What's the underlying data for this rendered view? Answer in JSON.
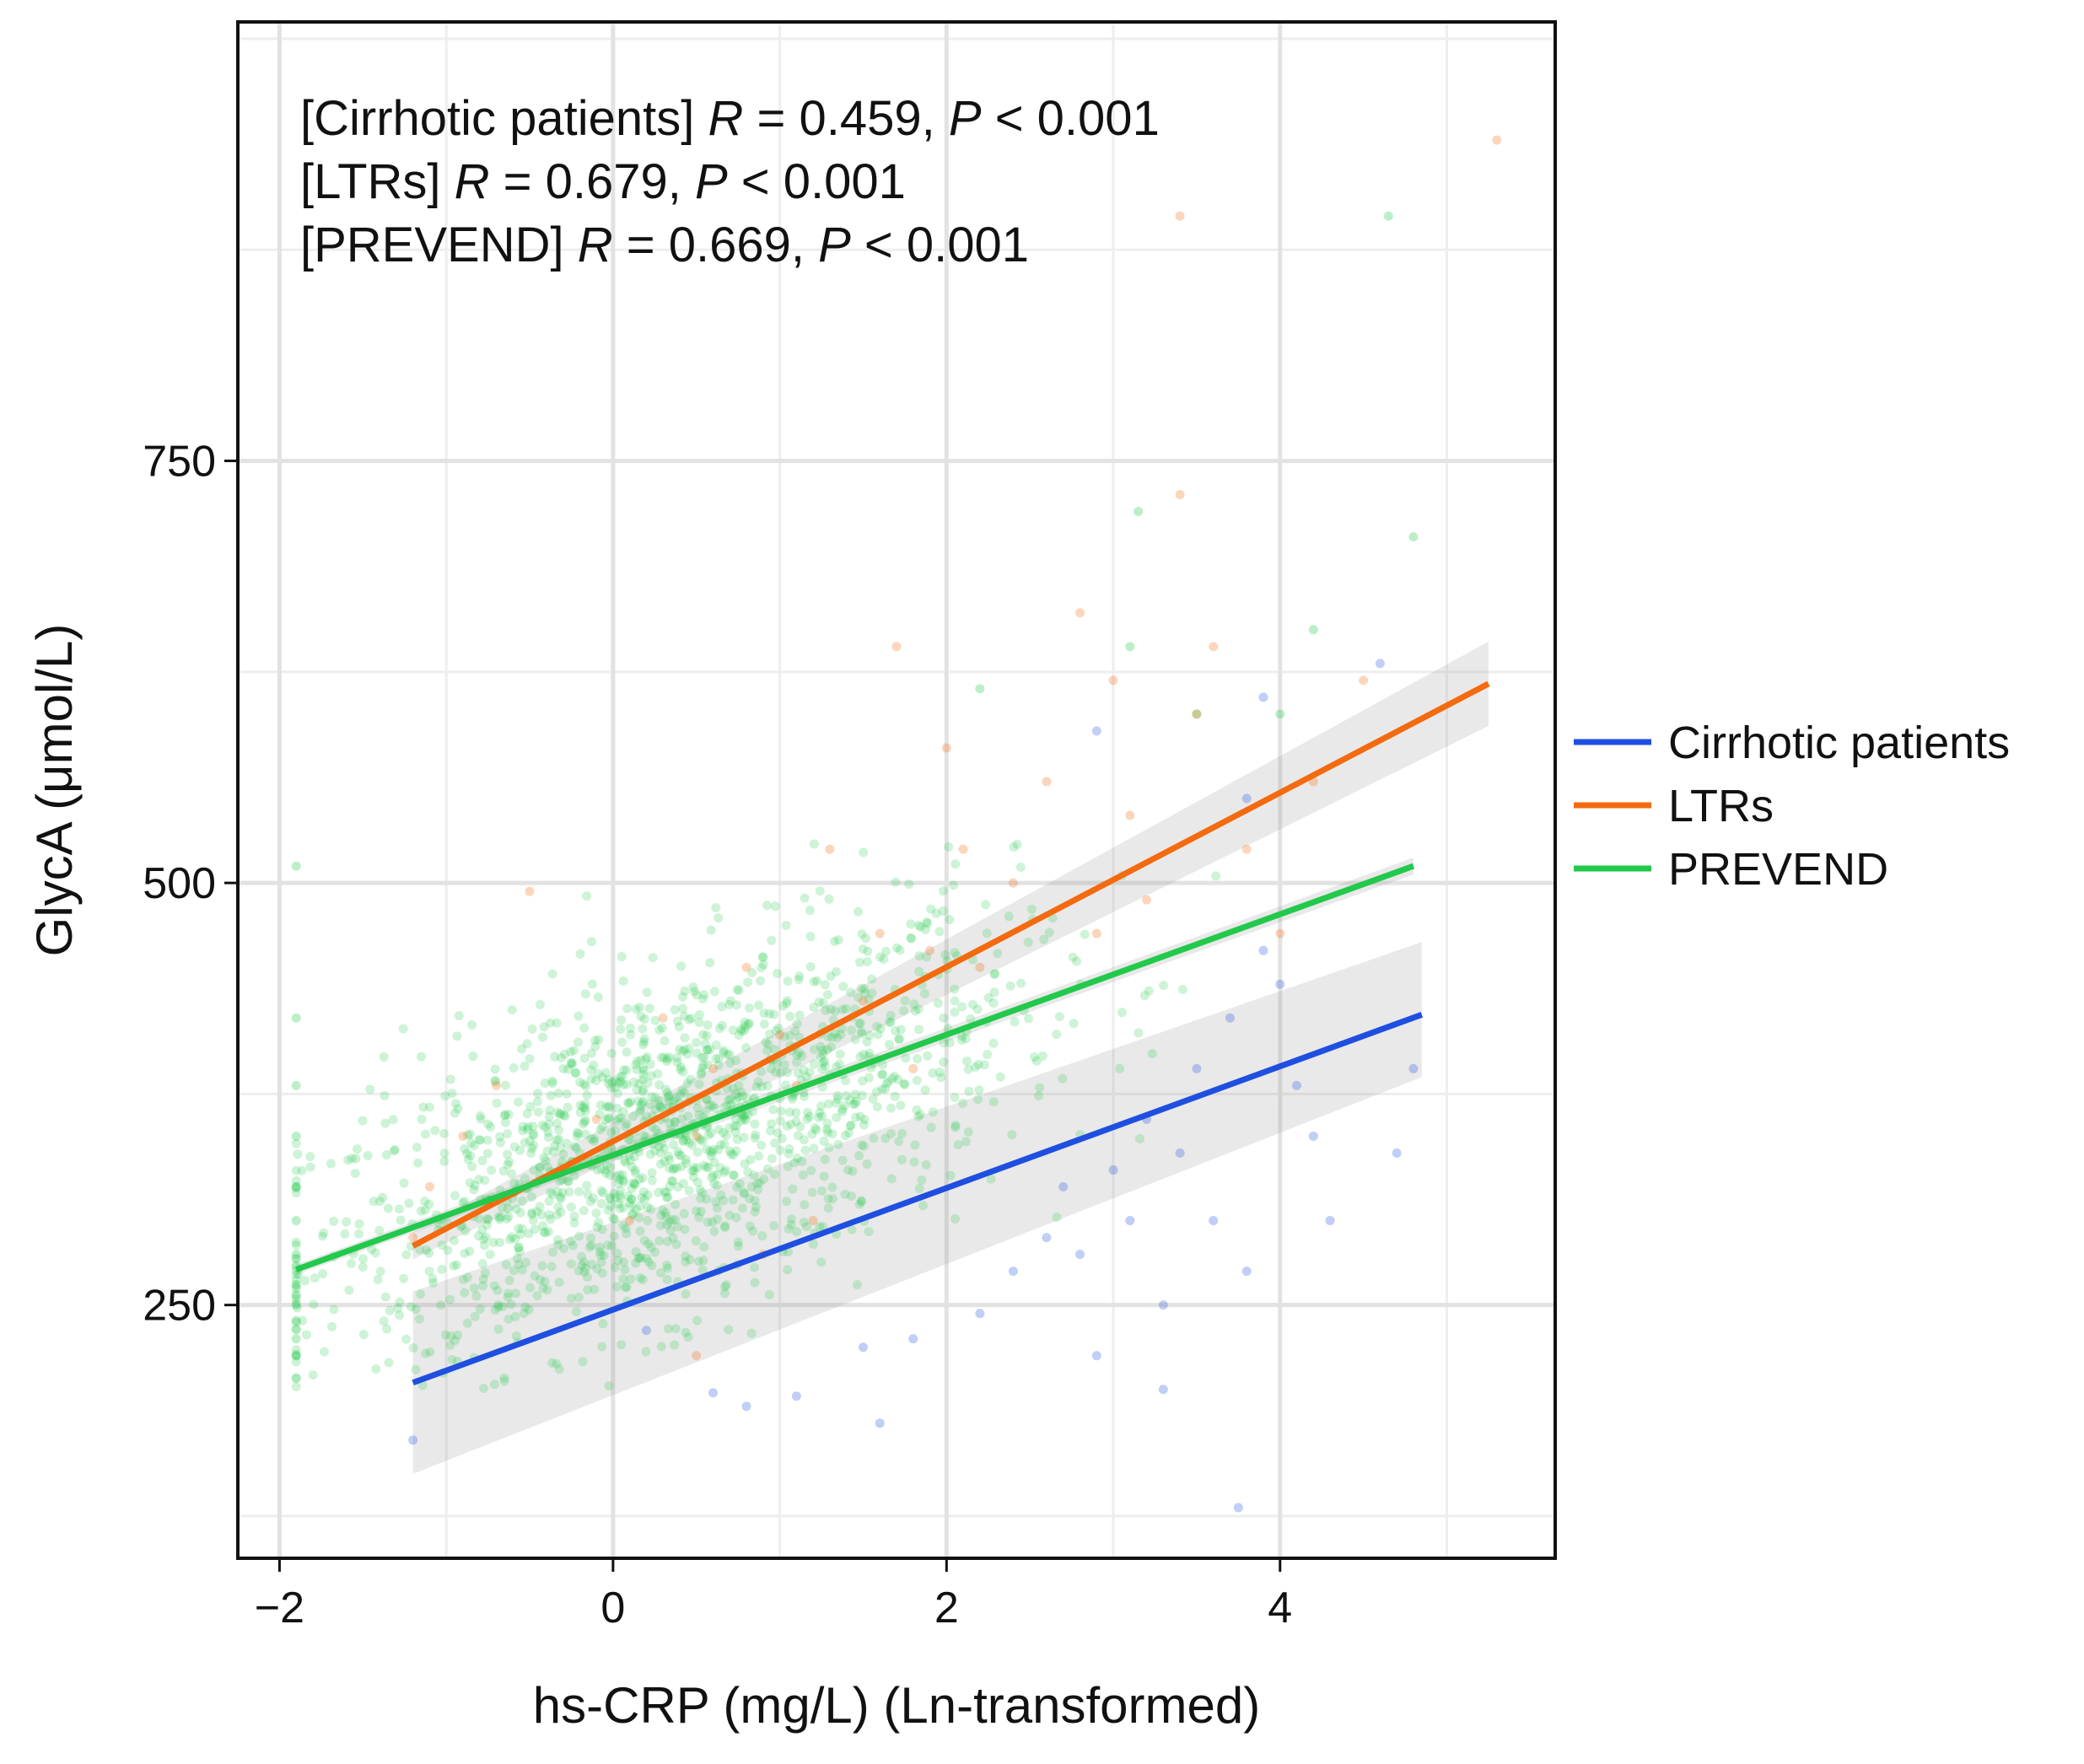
{
  "chart_data": {
    "type": "scatter",
    "xlabel": "hs-CRP (mg/L) (Ln-transformed)",
    "ylabel": "GlycA (μmol/L)",
    "xlim": [
      -2.25,
      5.65
    ],
    "ylim": [
      100,
      1010
    ],
    "x_ticks": [
      -2,
      0,
      2,
      4
    ],
    "x_tick_labels": [
      "−2",
      "0",
      "2",
      "4"
    ],
    "y_ticks": [
      250,
      500,
      750
    ],
    "y_tick_labels": [
      "250",
      "500",
      "750"
    ],
    "grid": true,
    "legend_position": "right",
    "annotations": [
      {
        "prefix": "[Cirrhotic patients] ",
        "r_label": "R",
        "r_text": " = 0.459, ",
        "p_label": "P",
        "p_text": " < 0.001"
      },
      {
        "prefix": "[LTRs] ",
        "r_label": "R",
        "r_text": " = 0.679, ",
        "p_label": "P",
        "p_text": " < 0.001"
      },
      {
        "prefix": "[PREVEND] ",
        "r_label": "R",
        "r_text": " = 0.669, ",
        "p_label": "P",
        "p_text": " < 0.001"
      }
    ],
    "series": [
      {
        "name": "Cirrhotic patients",
        "color": "#1f4fe0",
        "fit": {
          "x": [
            -1.2,
            4.85
          ],
          "y": [
            204,
            422
          ]
        },
        "ci": {
          "x": [
            -1.2,
            4.85
          ],
          "lower": [
            150,
            385
          ],
          "upper": [
            258,
            465
          ]
        },
        "points": [
          [
            -1.2,
            170
          ],
          [
            0.2,
            235
          ],
          [
            0.6,
            198
          ],
          [
            0.8,
            190
          ],
          [
            1.1,
            196
          ],
          [
            1.5,
            225
          ],
          [
            1.6,
            180
          ],
          [
            1.8,
            230
          ],
          [
            2.2,
            245
          ],
          [
            2.4,
            270
          ],
          [
            2.6,
            290
          ],
          [
            2.7,
            320
          ],
          [
            2.8,
            280
          ],
          [
            2.9,
            220
          ],
          [
            3.0,
            330
          ],
          [
            3.1,
            300
          ],
          [
            3.2,
            360
          ],
          [
            3.3,
            250
          ],
          [
            3.3,
            200
          ],
          [
            3.4,
            340
          ],
          [
            3.5,
            390
          ],
          [
            3.6,
            300
          ],
          [
            3.7,
            420
          ],
          [
            3.8,
            270
          ],
          [
            3.8,
            550
          ],
          [
            3.9,
            460
          ],
          [
            4.0,
            440
          ],
          [
            4.1,
            380
          ],
          [
            4.2,
            350
          ],
          [
            4.3,
            300
          ],
          [
            4.7,
            340
          ],
          [
            4.8,
            390
          ],
          [
            3.75,
            130
          ],
          [
            4.6,
            630
          ],
          [
            3.9,
            610
          ],
          [
            2.9,
            590
          ]
        ]
      },
      {
        "name": "LTRs",
        "color": "#f46a0e",
        "fit": {
          "x": [
            -1.2,
            5.25
          ],
          "y": [
            285,
            618
          ]
        },
        "ci": {
          "x": [
            -1.2,
            5.25
          ],
          "lower": [
            277,
            593
          ],
          "upper": [
            293,
            643
          ]
        },
        "points": [
          [
            -1.2,
            290
          ],
          [
            -1.1,
            320
          ],
          [
            -0.9,
            350
          ],
          [
            -0.7,
            380
          ],
          [
            -0.5,
            495
          ],
          [
            -0.3,
            330
          ],
          [
            -0.1,
            360
          ],
          [
            0.1,
            300
          ],
          [
            0.3,
            420
          ],
          [
            0.5,
            350
          ],
          [
            0.6,
            390
          ],
          [
            0.8,
            450
          ],
          [
            1.0,
            410
          ],
          [
            1.1,
            380
          ],
          [
            1.3,
            520
          ],
          [
            1.5,
            430
          ],
          [
            1.6,
            470
          ],
          [
            1.7,
            640
          ],
          [
            1.8,
            390
          ],
          [
            1.9,
            460
          ],
          [
            2.0,
            580
          ],
          [
            2.1,
            520
          ],
          [
            2.2,
            450
          ],
          [
            2.4,
            500
          ],
          [
            2.6,
            560
          ],
          [
            2.8,
            660
          ],
          [
            2.9,
            470
          ],
          [
            3.0,
            620
          ],
          [
            3.1,
            540
          ],
          [
            3.2,
            490
          ],
          [
            3.4,
            730
          ],
          [
            3.4,
            895
          ],
          [
            3.5,
            600
          ],
          [
            3.6,
            640
          ],
          [
            3.8,
            520
          ],
          [
            4.0,
            470
          ],
          [
            4.2,
            560
          ],
          [
            4.5,
            620
          ],
          [
            5.3,
            940
          ],
          [
            0.5,
            220
          ],
          [
            0.9,
            280
          ],
          [
            1.2,
            300
          ]
        ]
      },
      {
        "name": "PREVEND",
        "color": "#22c94b",
        "fit": {
          "x": [
            -1.9,
            4.8
          ],
          "y": [
            271,
            510
          ]
        },
        "ci": {
          "x": [
            -1.9,
            4.8
          ],
          "lower": [
            268,
            505
          ],
          "upper": [
            274,
            515
          ]
        },
        "cloud": {
          "center": [
            0.3,
            345
          ],
          "spread": [
            1.05,
            50
          ],
          "count": 1600,
          "x_min": -1.9,
          "x_max": 4.5,
          "slope": 36,
          "y_min": 200,
          "y_max": 720
        },
        "points": [
          [
            -1.9,
            510
          ],
          [
            -1.9,
            420
          ],
          [
            -1.9,
            380
          ],
          [
            -1.9,
            350
          ],
          [
            -1.9,
            320
          ],
          [
            -1.9,
            300
          ],
          [
            -1.9,
            280
          ],
          [
            -1.9,
            260
          ],
          [
            -1.9,
            250
          ],
          [
            -1.9,
            240
          ],
          [
            -1.9,
            230
          ],
          [
            -1.9,
            220
          ],
          [
            3.1,
            640
          ],
          [
            3.15,
            720
          ],
          [
            4.0,
            600
          ],
          [
            4.2,
            650
          ],
          [
            4.65,
            895
          ],
          [
            4.8,
            705
          ],
          [
            3.5,
            600
          ],
          [
            2.2,
            615
          ]
        ]
      }
    ]
  }
}
